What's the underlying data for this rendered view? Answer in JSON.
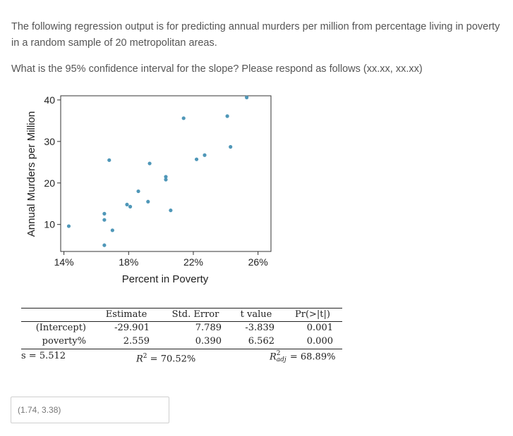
{
  "question": {
    "intro": "The following regression output is for predicting annual murders per million from percentage living in poverty in a random sample of 20 metropolitan areas.",
    "prompt": "What is the 95% confidence interval for the slope? Please respond as follows (xx.xx, xx.xx)"
  },
  "chart_data": {
    "type": "scatter",
    "xlabel": "Percent in Poverty",
    "ylabel": "Annual Murders per Million",
    "xlim": [
      13.8,
      26.8
    ],
    "ylim": [
      3.5,
      41
    ],
    "xticks": [
      {
        "v": 14,
        "label": "14%"
      },
      {
        "v": 18,
        "label": "18%"
      },
      {
        "v": 22,
        "label": "22%"
      },
      {
        "v": 26,
        "label": "26%"
      }
    ],
    "yticks": [
      {
        "v": 10,
        "label": "10"
      },
      {
        "v": 20,
        "label": "20"
      },
      {
        "v": 30,
        "label": "30"
      },
      {
        "v": 40,
        "label": "40"
      }
    ],
    "point_color": "#4f97b8",
    "points": [
      {
        "x": 14.3,
        "y": 9.6
      },
      {
        "x": 16.5,
        "y": 5.0
      },
      {
        "x": 16.5,
        "y": 11.1
      },
      {
        "x": 16.5,
        "y": 12.6
      },
      {
        "x": 16.8,
        "y": 25.5
      },
      {
        "x": 17.0,
        "y": 8.6
      },
      {
        "x": 17.9,
        "y": 14.8
      },
      {
        "x": 18.1,
        "y": 14.3
      },
      {
        "x": 18.6,
        "y": 18.0
      },
      {
        "x": 19.2,
        "y": 15.5
      },
      {
        "x": 19.3,
        "y": 24.7
      },
      {
        "x": 20.3,
        "y": 21.5
      },
      {
        "x": 20.3,
        "y": 20.8
      },
      {
        "x": 20.6,
        "y": 13.4
      },
      {
        "x": 21.4,
        "y": 35.6
      },
      {
        "x": 22.2,
        "y": 25.7
      },
      {
        "x": 22.7,
        "y": 26.7
      },
      {
        "x": 24.1,
        "y": 36.1
      },
      {
        "x": 24.3,
        "y": 28.7
      },
      {
        "x": 25.3,
        "y": 40.6
      }
    ]
  },
  "regression_table": {
    "headers": [
      "Estimate",
      "Std. Error",
      "t value",
      "Pr(>|t|)"
    ],
    "rows": [
      {
        "name": "(Intercept)",
        "estimate": "-29.901",
        "std_error": "7.789",
        "t_value": "-3.839",
        "p_value": "0.001"
      },
      {
        "name": "poverty%",
        "estimate": "2.559",
        "std_error": "0.390",
        "t_value": "6.562",
        "p_value": "0.000"
      }
    ],
    "s_label": "s = 5.512",
    "r2_label": "R",
    "r2_value": " = 70.52%",
    "r2adj_sub": "adj",
    "r2adj_value": " = 68.89%"
  },
  "answer": {
    "value": "(1.74, 3.38)"
  }
}
